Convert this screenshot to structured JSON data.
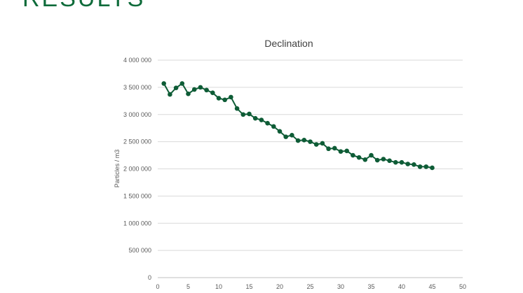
{
  "slide": {
    "title": "RESULTS"
  },
  "chart_data": {
    "type": "line",
    "title": "Declination",
    "xlabel": "",
    "ylabel": "Particles / m3",
    "xlim": [
      0,
      50
    ],
    "ylim": [
      0,
      4000000
    ],
    "x_ticks": [
      "0",
      "5",
      "10",
      "15",
      "20",
      "25",
      "30",
      "35",
      "40",
      "45",
      "50"
    ],
    "y_ticks": [
      "0",
      "500 000",
      "1 000 000",
      "1 500 000",
      "2 000 000",
      "2 500 000",
      "3 000 000",
      "3 500 000",
      "4 000 000"
    ],
    "grid": "horizontal",
    "series": [
      {
        "color": "#0e5c36",
        "x": [
          1,
          2,
          3,
          4,
          5,
          6,
          7,
          8,
          9,
          10,
          11,
          12,
          13,
          14,
          15,
          16,
          17,
          18,
          19,
          20,
          21,
          22,
          23,
          24,
          25,
          26,
          27,
          28,
          29,
          30,
          31,
          32,
          33,
          34,
          35,
          36,
          37,
          38,
          39,
          40,
          41,
          42,
          43,
          44,
          45
        ],
        "y": [
          3570000,
          3370000,
          3490000,
          3570000,
          3380000,
          3460000,
          3500000,
          3450000,
          3400000,
          3300000,
          3270000,
          3320000,
          3110000,
          3000000,
          3010000,
          2930000,
          2900000,
          2840000,
          2780000,
          2690000,
          2590000,
          2620000,
          2520000,
          2530000,
          2500000,
          2450000,
          2470000,
          2370000,
          2380000,
          2320000,
          2330000,
          2250000,
          2210000,
          2170000,
          2250000,
          2160000,
          2180000,
          2150000,
          2120000,
          2120000,
          2090000,
          2080000,
          2040000,
          2040000,
          2020000
        ]
      }
    ]
  }
}
